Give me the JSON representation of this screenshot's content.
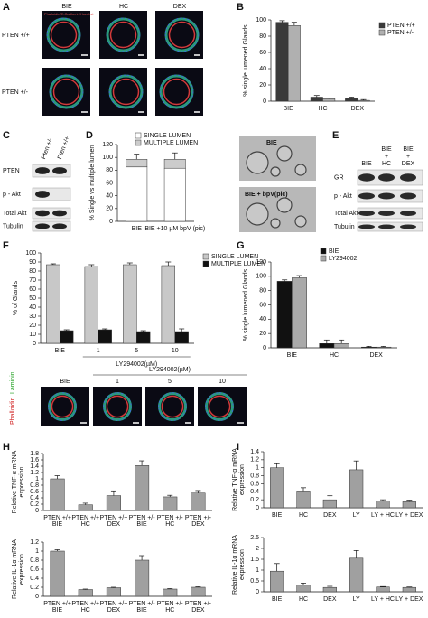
{
  "panel_letters": [
    "A",
    "B",
    "C",
    "D",
    "E",
    "F",
    "G",
    "H",
    "I"
  ],
  "panel_a": {
    "columns": [
      "BIE",
      "HC",
      "DEX"
    ],
    "rows": [
      "PTEN +/+",
      "PTEN +/-"
    ],
    "stain": "Phalloidin/E-Cadherin/Hoechst"
  },
  "panel_c": {
    "columns": [
      "Pten +/-",
      "Pten +/+"
    ],
    "rows": [
      "PTEN",
      "p - Akt",
      "Total Akt",
      "Tubulin"
    ]
  },
  "panel_d_images": [
    "BIE",
    "BIE + bpV(pic)"
  ],
  "panel_e": {
    "columns": [
      [
        "BIE"
      ],
      [
        "BIE",
        "+",
        "HC"
      ],
      [
        "BIE",
        "+",
        "DEX"
      ]
    ],
    "rows": [
      "GR",
      "p - Akt",
      "Total Akt",
      "Tubulin"
    ]
  },
  "panel_f_images": {
    "title": "LY294002(µM)",
    "columns": [
      "BIE",
      "1",
      "5",
      "10"
    ],
    "stains": [
      "Phalloidin",
      "Laminin"
    ]
  },
  "chart_data": [
    {
      "type": "bar",
      "ylabel": "% single lumened Glands",
      "categories": [
        "BIE",
        "HC",
        "DEX"
      ],
      "ylim": [
        0,
        100
      ],
      "yticks": [
        0,
        20,
        40,
        60,
        80,
        100
      ],
      "legend": "upper right",
      "series": [
        {
          "name": "PTEN +/+",
          "color": "#3a3a3a",
          "values": [
            97,
            5,
            3
          ],
          "errors": [
            2,
            2,
            2
          ]
        },
        {
          "name": "PTEN +/-",
          "color": "#b0b0b0",
          "values": [
            93,
            3,
            1
          ],
          "errors": [
            4,
            1,
            1
          ]
        }
      ]
    },
    {
      "type": "bar",
      "stacked": true,
      "ylabel": "% Single vs multiple lumen",
      "categories": [
        "BIE",
        "BIE +10 µM bpV (pic)"
      ],
      "ylim": [
        0,
        120
      ],
      "yticks": [
        0,
        20,
        40,
        60,
        80,
        100,
        120
      ],
      "legend": "upper center",
      "series": [
        {
          "name": "SINGLE LUMEN",
          "color": "#ffffff",
          "values": [
            85,
            83
          ]
        },
        {
          "name": "MULTIPLE LUMEN",
          "color": "#cccccc",
          "values": [
            12,
            14
          ],
          "errors": [
            8,
            10
          ]
        }
      ]
    },
    {
      "type": "bar",
      "ylabel": "% of Glands",
      "xlabel": "LY294002(µM)",
      "categories": [
        "BIE",
        "1",
        "5",
        "10"
      ],
      "ylim": [
        0,
        100
      ],
      "yticks": [
        0,
        10,
        20,
        30,
        40,
        50,
        60,
        70,
        80,
        90,
        100
      ],
      "legend": "right",
      "series": [
        {
          "name": "SINGLE LUMEN",
          "color": "#c8c8c8",
          "values": [
            87,
            85,
            87,
            86
          ],
          "errors": [
            1,
            2,
            2,
            4
          ]
        },
        {
          "name": "MULTIPLE LUMEN",
          "color": "#111111",
          "values": [
            14,
            15,
            13,
            13
          ],
          "errors": [
            1,
            1,
            1,
            3
          ]
        }
      ]
    },
    {
      "type": "bar",
      "ylabel": "% single lumened Glands",
      "categories": [
        "BIE",
        "HC",
        "DEX"
      ],
      "ylim": [
        0,
        120
      ],
      "yticks": [
        0,
        20,
        40,
        60,
        80,
        100,
        120
      ],
      "legend": "upper right",
      "series": [
        {
          "name": "BIE",
          "color": "#111111",
          "values": [
            93,
            6,
            1
          ],
          "errors": [
            2,
            5,
            1
          ]
        },
        {
          "name": "LY294002",
          "color": "#aaaaaa",
          "values": [
            98,
            6,
            1
          ],
          "errors": [
            3,
            5,
            1
          ]
        }
      ]
    },
    {
      "type": "bar",
      "ylabel": [
        "Relative TNF-α mRNA",
        "expression"
      ],
      "categories": [
        [
          "PTEN +/+",
          "BIE"
        ],
        [
          "PTEN +/+",
          "HC"
        ],
        [
          "PTEN +/+",
          "DEX"
        ],
        [
          "PTEN +/-",
          "BIE"
        ],
        [
          "PTEN +/-",
          "HC"
        ],
        [
          "PTEN +/-",
          "DEX"
        ]
      ],
      "ylim": [
        0,
        1.8
      ],
      "yticks": [
        0,
        0.2,
        0.4,
        0.6,
        0.8,
        1,
        1.2,
        1.4,
        1.6,
        1.8
      ],
      "color": "#a0a0a0",
      "values": [
        1,
        0.18,
        0.47,
        1.42,
        0.43,
        0.55
      ],
      "errors": [
        0.1,
        0.05,
        0.15,
        0.15,
        0.05,
        0.08
      ]
    },
    {
      "type": "bar",
      "ylabel": [
        "Relative IL-1α mRNA",
        "expression"
      ],
      "categories": [
        [
          "PTEN +/+",
          "BIE"
        ],
        [
          "PTEN +/+",
          "HC"
        ],
        [
          "PTEN +/+",
          "DEX"
        ],
        [
          "PTEN +/-",
          "BIE"
        ],
        [
          "PTEN +/-",
          "HC"
        ],
        [
          "PTEN +/-",
          "DEX"
        ]
      ],
      "ylim": [
        0,
        1.2
      ],
      "yticks": [
        0,
        0.2,
        0.4,
        0.6,
        0.8,
        1,
        1.2
      ],
      "color": "#a0a0a0",
      "values": [
        1,
        0.15,
        0.19,
        0.8,
        0.16,
        0.2
      ],
      "errors": [
        0.03,
        0.01,
        0.01,
        0.1,
        0.01,
        0.01
      ]
    },
    {
      "type": "bar",
      "ylabel": [
        "Relative TNF-α mRNA",
        "expression"
      ],
      "categories": [
        "BIE",
        "HC",
        "DEX",
        "LY",
        "LY + HC",
        "LY + DEX"
      ],
      "ylim": [
        0,
        1.4
      ],
      "yticks": [
        0,
        0.2,
        0.4,
        0.6,
        0.8,
        1,
        1.2,
        1.4
      ],
      "color": "#a0a0a0",
      "values": [
        1,
        0.42,
        0.2,
        0.95,
        0.17,
        0.15
      ],
      "errors": [
        0.1,
        0.08,
        0.1,
        0.22,
        0.03,
        0.04
      ]
    },
    {
      "type": "bar",
      "ylabel": [
        "Relative IL-1α mRNA",
        "expression"
      ],
      "categories": [
        "BIE",
        "HC",
        "DEX",
        "LY",
        "LY + HC",
        "LY + DEX"
      ],
      "ylim": [
        0,
        2.5
      ],
      "yticks": [
        0,
        0.5,
        1,
        1.5,
        2,
        2.5
      ],
      "color": "#a0a0a0",
      "values": [
        0.95,
        0.3,
        0.2,
        1.55,
        0.22,
        0.2
      ],
      "errors": [
        0.35,
        0.1,
        0.05,
        0.35,
        0.02,
        0.02
      ]
    }
  ]
}
